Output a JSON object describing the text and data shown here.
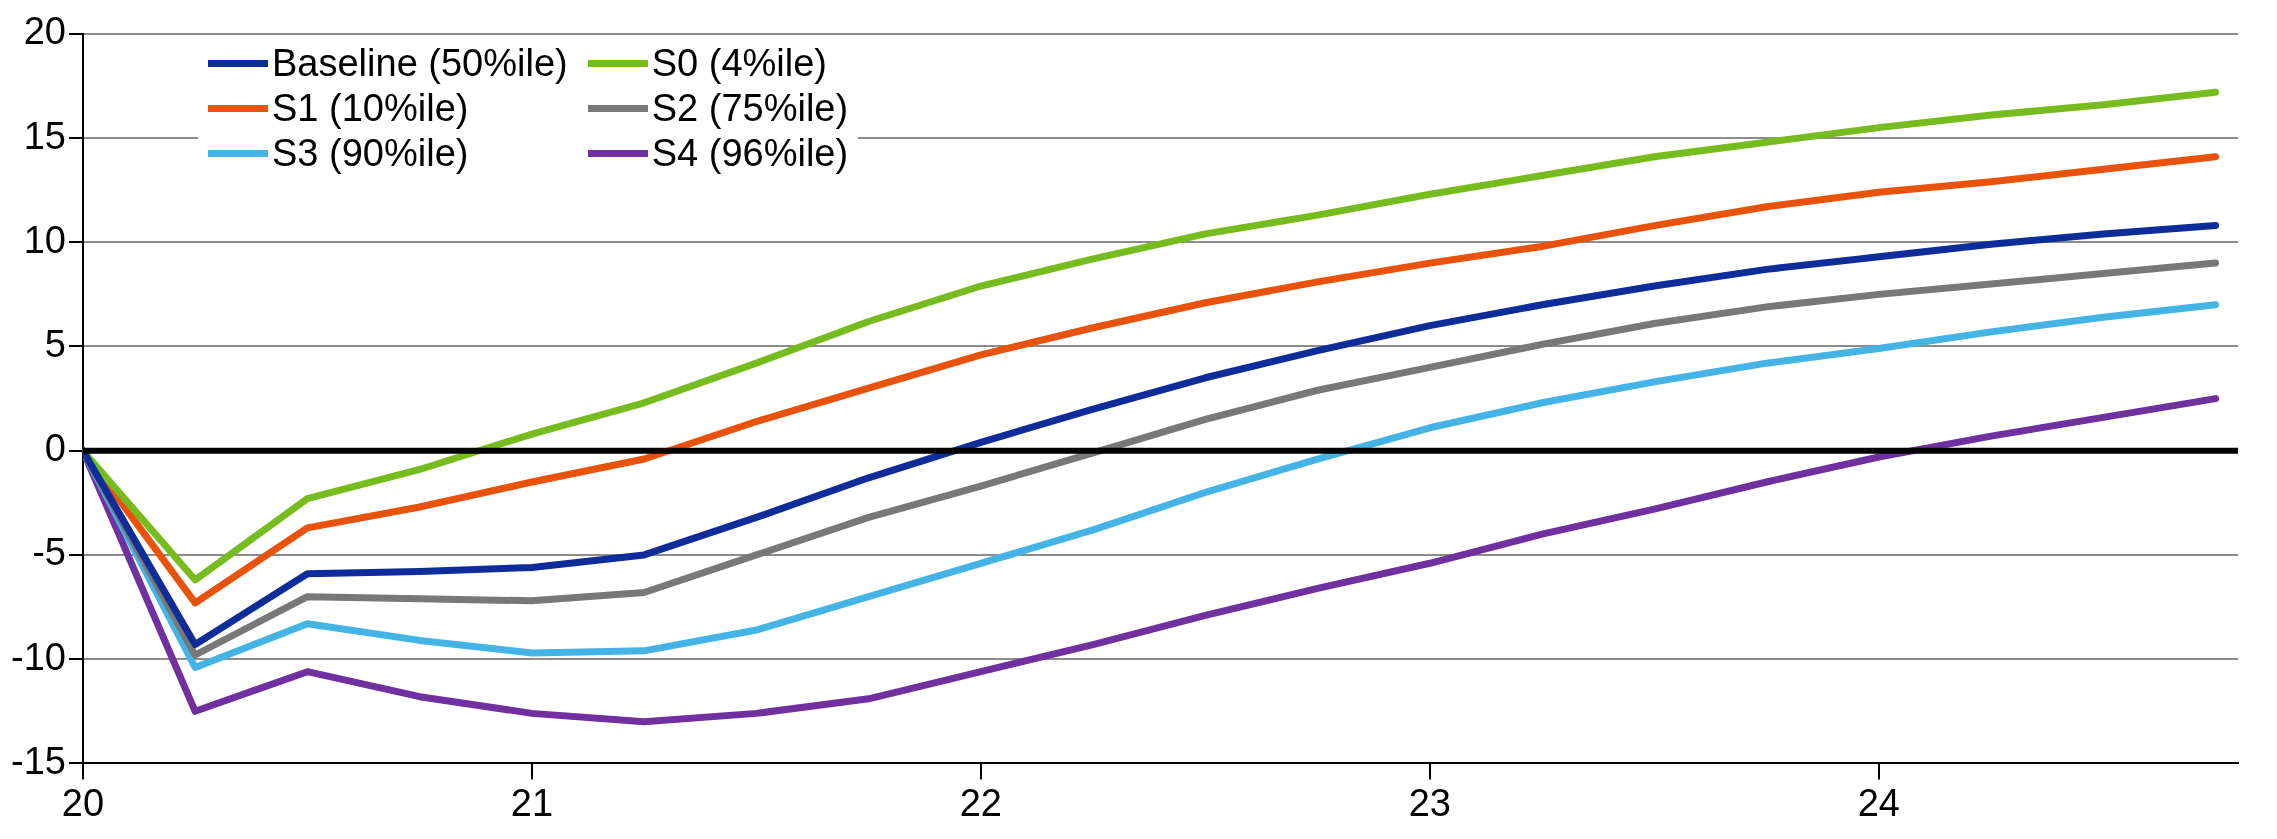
{
  "chart_data": {
    "type": "line",
    "x": [
      20,
      20.25,
      20.5,
      20.75,
      21,
      21.25,
      21.5,
      21.75,
      22,
      22.25,
      22.5,
      22.75,
      23,
      23.25,
      23.5,
      23.75,
      24,
      24.25,
      24.5,
      24.75
    ],
    "xlim": [
      20,
      24.8
    ],
    "xticks": [
      20,
      21,
      22,
      23,
      24
    ],
    "ylim": [
      -15,
      20
    ],
    "yticks": [
      -15,
      -10,
      -5,
      0,
      5,
      10,
      15,
      20
    ],
    "grid": "y",
    "legend": "top left",
    "marker": "none",
    "line_style": "solid",
    "ref_lines": [
      {
        "axis": "y",
        "value": 0,
        "color": "#000000"
      }
    ],
    "series": [
      {
        "name": "Baseline (50%ile)",
        "color": "#0f2d9a",
        "values": [
          0,
          -9.3,
          -5.9,
          -5.8,
          -5.6,
          -5.0,
          -3.2,
          -1.3,
          0.4,
          2.0,
          3.5,
          4.8,
          6.0,
          7.0,
          7.9,
          8.7,
          9.3,
          9.9,
          10.4,
          10.8
        ]
      },
      {
        "name": "S0 (4%ile)",
        "color": "#77bc1f",
        "values": [
          0,
          -6.2,
          -2.3,
          -0.9,
          0.8,
          2.3,
          4.2,
          6.2,
          7.9,
          9.2,
          10.4,
          11.3,
          12.3,
          13.2,
          14.1,
          14.8,
          15.5,
          16.1,
          16.6,
          17.2
        ]
      },
      {
        "name": "S1 (10%ile)",
        "color": "#e8520a",
        "values": [
          0,
          -7.3,
          -3.7,
          -2.7,
          -1.5,
          -0.4,
          1.4,
          3.0,
          4.6,
          5.9,
          7.1,
          8.1,
          9.0,
          9.8,
          10.8,
          11.7,
          12.4,
          12.9,
          13.5,
          14.1
        ]
      },
      {
        "name": "S2 (75%ile)",
        "color": "#787878",
        "values": [
          0,
          -9.8,
          -7.0,
          -7.1,
          -7.2,
          -6.8,
          -5.0,
          -3.2,
          -1.7,
          -0.1,
          1.5,
          2.9,
          4.0,
          5.1,
          6.1,
          6.9,
          7.5,
          8.0,
          8.5,
          9.0
        ]
      },
      {
        "name": "S3 (90%ile)",
        "color": "#44b4e6",
        "values": [
          0,
          -10.4,
          -8.3,
          -9.1,
          -9.7,
          -9.6,
          -8.6,
          -7.0,
          -5.4,
          -3.8,
          -2.0,
          -0.4,
          1.1,
          2.3,
          3.3,
          4.2,
          4.9,
          5.7,
          6.4,
          7.0
        ]
      },
      {
        "name": "S4 (96%ile)",
        "color": "#7030a0",
        "values": [
          0,
          -12.5,
          -10.6,
          -11.8,
          -12.6,
          -13.0,
          -12.6,
          -11.9,
          -10.6,
          -9.3,
          -7.9,
          -6.6,
          -5.4,
          -4.0,
          -2.8,
          -1.5,
          -0.3,
          0.7,
          1.6,
          2.5
        ]
      }
    ]
  }
}
